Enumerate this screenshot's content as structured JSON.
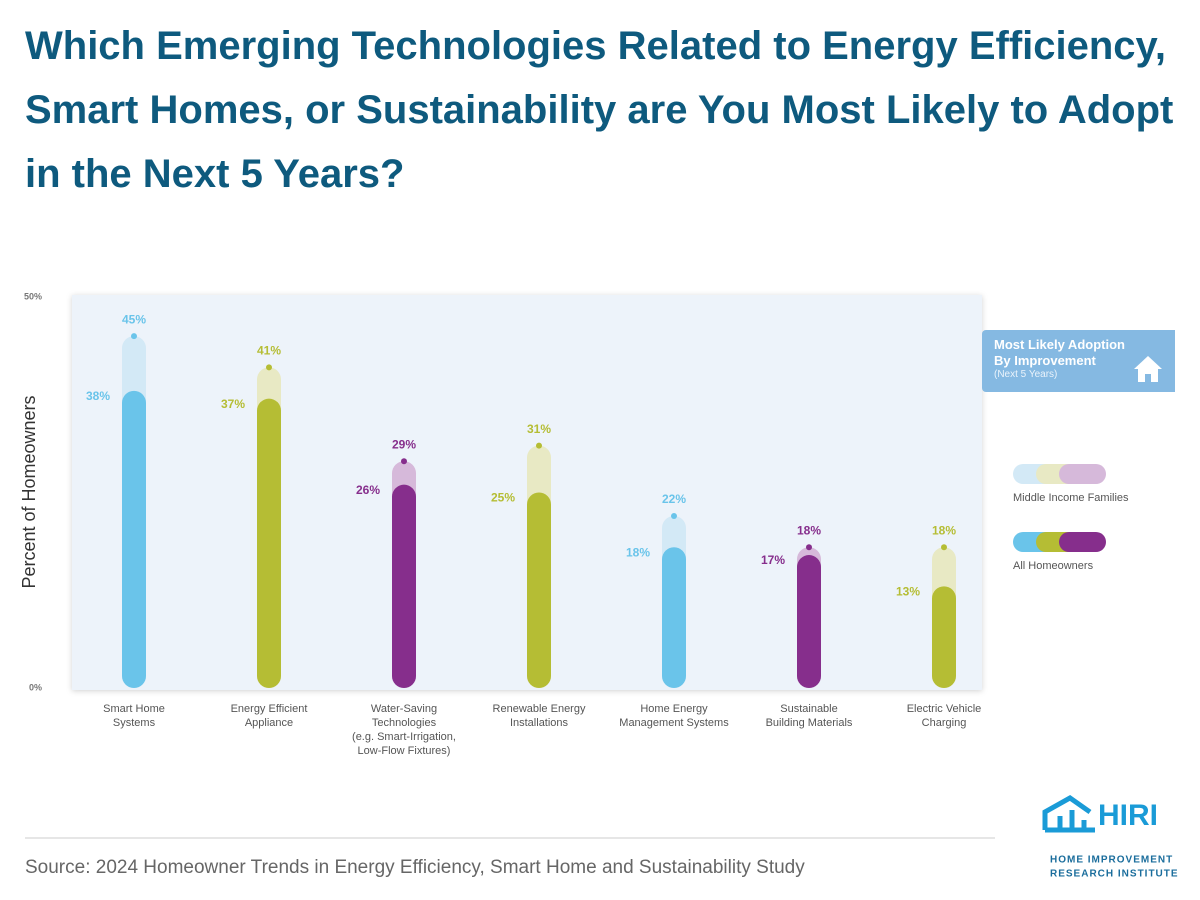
{
  "chart_data": {
    "type": "bar",
    "title": "Which Emerging Technologies Related to Energy Efficiency, Smart Homes, or Sustainability are You Most Likely to Adopt in the Next 5 Years?",
    "y_label": "Percent of Homeowners",
    "categories": [
      "Smart Home\nSystems",
      "Energy Efficient\nAppliance",
      "Water-Saving\nTechnologies\n(e.g. Smart-Irrigation,\nLow-Flow Fixtures)",
      "Renewable Energy\nInstallations",
      "Home Energy\nManagement Systems",
      "Sustainable\nBuilding Materials",
      "Electric Vehicle\nCharging"
    ],
    "series": [
      {
        "name": "Middle Income Families",
        "colors": [
          "#d3e9f6",
          "#e8e9c4",
          "#d6b9da",
          "#e8e9c4",
          "#d3e9f6",
          "#d6b9da",
          "#e8e9c4"
        ],
        "values": [
          45,
          41,
          29,
          31,
          22,
          18,
          18
        ],
        "value_labels": [
          "45%",
          "41%",
          "29%",
          "31%",
          "22%",
          "18%",
          "18%"
        ]
      },
      {
        "name": "All Homeowners",
        "colors": [
          "#6ac4ea",
          "#b5bd34",
          "#862e8c",
          "#b5bd34",
          "#6ac4ea",
          "#862e8c",
          "#b5bd34"
        ],
        "values": [
          38,
          37,
          26,
          25,
          18,
          17,
          13
        ],
        "value_labels": [
          "38%",
          "37%",
          "26%",
          "25%",
          "18%",
          "17%",
          "13%"
        ]
      }
    ],
    "ylim": [
      0,
      50
    ],
    "yticks": [
      {
        "value": 0,
        "label": "0%"
      },
      {
        "value": 50,
        "label": "50%"
      }
    ],
    "callout": {
      "title": "Most Likely Adoption By Improvement",
      "subtitle": "(Next 5 Years)"
    },
    "source": "Source: 2024 Homeowner Trends in Energy Efficiency, Smart Home and Sustainability Study",
    "logo": {
      "name": "HIRI",
      "line1": "HOME IMPROVEMENT",
      "line2": "RESEARCH INSTITUTE"
    }
  }
}
